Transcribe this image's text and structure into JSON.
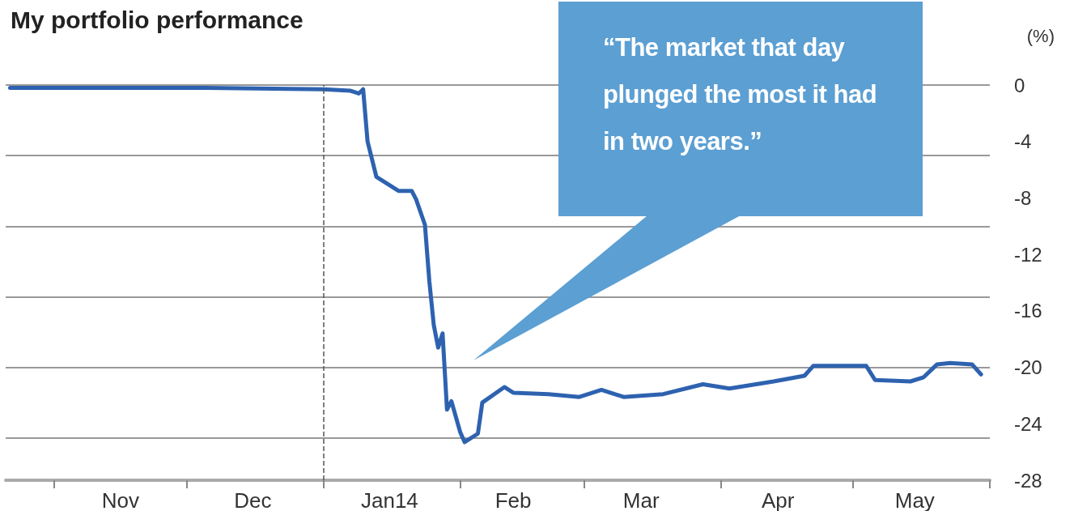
{
  "chart_data": {
    "type": "line",
    "title": "My portfolio performance",
    "ylabel": "(%)",
    "x": [
      "2013-10-22",
      "2013-12-05",
      "2014-01-01",
      "2014-01-07",
      "2014-01-09",
      "2014-01-10",
      "2014-01-11",
      "2014-01-13",
      "2014-01-18",
      "2014-01-21",
      "2014-01-22",
      "2014-01-24",
      "2014-01-25",
      "2014-01-26",
      "2014-01-27",
      "2014-01-28",
      "2014-01-29",
      "2014-01-30",
      "2014-02-01",
      "2014-02-02",
      "2014-02-05",
      "2014-02-06",
      "2014-02-11",
      "2014-02-13",
      "2014-02-21",
      "2014-02-28",
      "2014-03-05",
      "2014-03-10",
      "2014-03-19",
      "2014-03-28",
      "2014-04-03",
      "2014-04-13",
      "2014-04-20",
      "2014-04-22",
      "2014-05-04",
      "2014-05-06",
      "2014-05-14",
      "2014-05-17",
      "2014-05-20",
      "2014-05-23",
      "2014-05-28",
      "2014-05-30"
    ],
    "series": [
      {
        "color": "#2e62b0",
        "values": [
          -0.2,
          -0.2,
          -0.3,
          -0.4,
          -0.6,
          -0.3,
          -4,
          -6.5,
          -7.5,
          -7.5,
          -8.1,
          -9.9,
          -13.9,
          -17,
          -18.6,
          -17.6,
          -23,
          -22.4,
          -24.6,
          -25.3,
          -24.7,
          -22.5,
          -21.4,
          -21.8,
          -21.9,
          -22.1,
          -21.6,
          -22.1,
          -21.9,
          -21.2,
          -21.5,
          -21,
          -20.6,
          -19.9,
          -19.9,
          -20.9,
          -21,
          -20.7,
          -19.8,
          -19.7,
          -19.8,
          -20.5
        ]
      }
    ],
    "xlim": [
      "2013-10-21",
      "2014-06-01"
    ],
    "xticks": [
      {
        "value": "2013-11-01",
        "label": null
      },
      {
        "value": "2013-12-01",
        "label": null
      },
      {
        "value": "2014-01-01",
        "label": null
      },
      {
        "value": "2014-02-01",
        "label": null
      },
      {
        "value": "2014-03-01",
        "label": null
      },
      {
        "value": "2014-04-01",
        "label": null
      },
      {
        "value": "2014-05-01",
        "label": null
      },
      {
        "value": "2014-06-01",
        "label": null
      },
      {
        "value": "2013-11-16",
        "label": "Nov"
      },
      {
        "value": "2013-12-16",
        "label": "Dec"
      },
      {
        "value": "2014-01-16",
        "label": "Jan14"
      },
      {
        "value": "2014-02-13",
        "label": "Feb"
      },
      {
        "value": "2014-03-14",
        "label": "Mar"
      },
      {
        "value": "2014-04-14",
        "label": "Apr"
      },
      {
        "value": "2014-05-15",
        "label": "May"
      }
    ],
    "ylim": [
      -28,
      0
    ],
    "yticks": [
      0,
      -4,
      -8,
      -12,
      -16,
      -20,
      -24,
      -28
    ],
    "ref_lines": [
      {
        "axis": "x",
        "value": "2014-01-01",
        "color": "#555555",
        "line_style": "dashed"
      }
    ],
    "annotations": [
      "“The market that day plunged the most it had in two years.”"
    ],
    "grid": "y",
    "marker": "none",
    "line_style": "solid"
  }
}
